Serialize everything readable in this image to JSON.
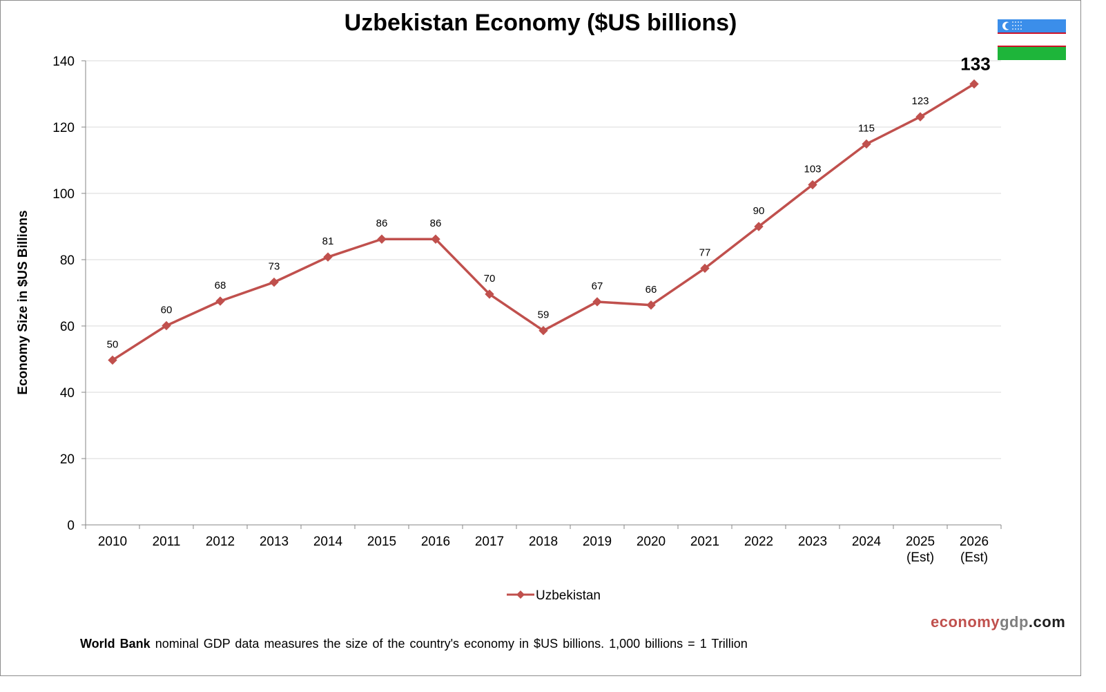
{
  "chart_data": {
    "type": "line",
    "title": "Uzbekistan Economy ($US billions)",
    "xlabel": "",
    "ylabel": "Economy Size in $US Billions",
    "ylim": [
      0,
      140
    ],
    "yticks": [
      0,
      20,
      40,
      60,
      80,
      100,
      120,
      140
    ],
    "grid": true,
    "legend_position": "bottom-center",
    "categories": [
      [
        "2010"
      ],
      [
        "2011"
      ],
      [
        "2012"
      ],
      [
        "2013"
      ],
      [
        "2014"
      ],
      [
        "2015"
      ],
      [
        "2016"
      ],
      [
        "2017"
      ],
      [
        "2018"
      ],
      [
        "2019"
      ],
      [
        "2020"
      ],
      [
        "2021"
      ],
      [
        "2022"
      ],
      [
        "2023"
      ],
      [
        "2024"
      ],
      [
        "2025",
        "(Est)"
      ],
      [
        "2026",
        "(Est)"
      ]
    ],
    "series": [
      {
        "name": "Uzbekistan",
        "color": "#c0504d",
        "values": [
          49.7,
          60.1,
          67.5,
          73.2,
          80.8,
          86.2,
          86.2,
          69.6,
          58.6,
          67.3,
          66.3,
          77.4,
          90.0,
          102.6,
          114.9,
          123.1,
          133.0
        ],
        "labels": [
          "50",
          "60",
          "68",
          "73",
          "81",
          "86",
          "86",
          "70",
          "59",
          "67",
          "66",
          "77",
          "90",
          "103",
          "115",
          "123",
          "133"
        ]
      }
    ]
  },
  "flag": {
    "name": "Uzbekistan flag",
    "colors": {
      "blue": "#3b8eea",
      "white": "#ffffff",
      "red": "#ce1126",
      "green": "#1eb53a"
    }
  },
  "brand": {
    "part1": "economy",
    "part2": "gdp",
    "part3": ".com"
  },
  "footer": {
    "bold": "World Bank",
    "text": " nominal GDP data  measures the size of the country's economy in $US billions.  1,000 billions = 1 Trillion"
  }
}
